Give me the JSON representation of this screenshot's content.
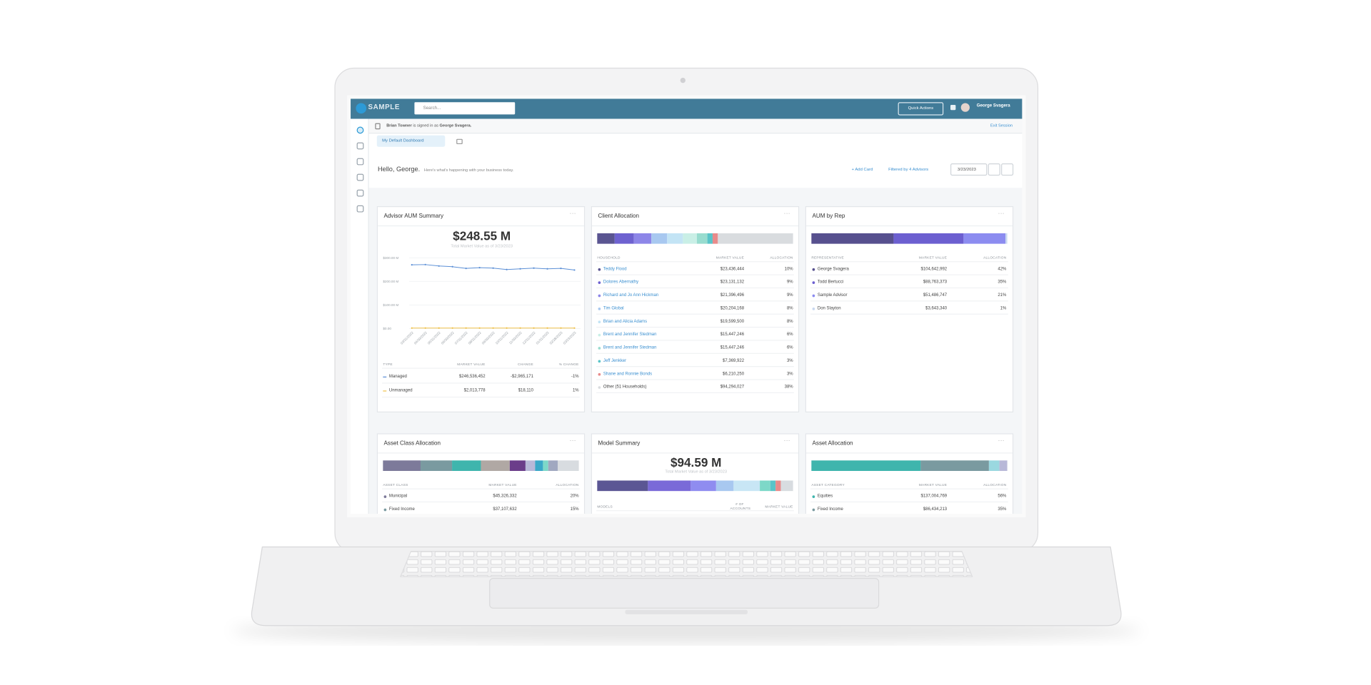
{
  "header": {
    "logo": "SAMPLE",
    "search_placeholder": "Search...",
    "quick_actions": "Quick Actions",
    "user_name": "George Svagera"
  },
  "banner": {
    "signed_in_user": "Brian Towner",
    "signed_in_text": "is signed in as",
    "signed_in_as": "George Svagera.",
    "exit": "Exit Session"
  },
  "tab": "My Default Dashboard",
  "greeting": {
    "title": "Hello, George.",
    "subtitle": "Here's what's happening with your business today.",
    "add_card": "+ Add Card",
    "filter": "Filtered by 4 Advisors",
    "date": "3/23/2023"
  },
  "chart_data": {
    "type": "line",
    "title": "Advisor AUM Summary",
    "x": [
      "03/31/2022",
      "04/30/2022",
      "05/31/2022",
      "06/30/2022",
      "07/31/2022",
      "08/31/2022",
      "09/30/2022",
      "10/31/2022",
      "11/30/2022",
      "12/31/2022",
      "01/31/2023",
      "02/28/2023",
      "03/23/2023"
    ],
    "series": [
      {
        "name": "Managed",
        "color": "#5b8fd6",
        "values": [
          270,
          271,
          265,
          262,
          255,
          258,
          256,
          250,
          253,
          256,
          253,
          255,
          248
        ]
      },
      {
        "name": "Unmanaged",
        "color": "#f0c24b",
        "values": [
          2,
          2,
          2,
          2,
          2,
          2,
          2,
          2,
          2,
          2,
          2,
          2,
          2
        ]
      }
    ],
    "ylim": [
      0,
      300
    ],
    "yticks": [
      {
        "value": 0,
        "label": "$0.00"
      },
      {
        "value": 100,
        "label": "$100.00 M"
      },
      {
        "value": 200,
        "label": "$200.00 M"
      },
      {
        "value": 300,
        "label": "$300.00 M"
      }
    ],
    "grid": true
  },
  "aum_summary": {
    "headline": "$248.55 M",
    "caption": "Total Market Value as of 3/23/2023",
    "headers": [
      "TYPE",
      "MARKET VALUE",
      "CHANGE",
      "% CHANGE"
    ],
    "rows": [
      [
        "$246,536,452",
        "-$2,965,171",
        "-1%"
      ],
      [
        "$2,013,778",
        "$18,110",
        "1%"
      ]
    ]
  },
  "client_allocation": {
    "title": "Client Allocation",
    "headers": [
      "HOUSEHOLD",
      "MARKET VALUE",
      "ALLOCATION"
    ],
    "links": true,
    "colors": [
      "#5a5591",
      "#6e62d0",
      "#8d86e8",
      "#a8c8f0",
      "#c3e4f5",
      "#c9efe6",
      "#98dccf",
      "#59c4c8",
      "#e88b8b",
      "#d9dcdf"
    ],
    "rows": [
      [
        "Teddy Flood",
        "$23,436,444",
        "10%"
      ],
      [
        "Dolores Abernathy",
        "$23,131,132",
        "9%"
      ],
      [
        "Richard and Jo Ann Hickman",
        "$21,396,496",
        "9%"
      ],
      [
        "Tim Global",
        "$20,204,168",
        "8%"
      ],
      [
        "Brian and Alicia Adams",
        "$19,599,500",
        "8%"
      ],
      [
        "Brent and Jennifer Stedman",
        "$15,447,246",
        "6%"
      ],
      [
        "Brent and Jennifer Stedman",
        "$15,447,246",
        "6%"
      ],
      [
        "Jeff Jenkker",
        "$7,369,922",
        "3%"
      ],
      [
        "Shane and Ronnie Bonds",
        "$6,210,250",
        "3%"
      ],
      [
        "Other (51 Households)",
        "$94,294,027",
        "38%"
      ]
    ]
  },
  "aum_by_rep": {
    "title": "AUM by Rep",
    "headers": [
      "REPRESENTATIVE",
      "MARKET VALUE",
      "ALLOCATION"
    ],
    "colors": [
      "#57508e",
      "#6c5fd0",
      "#8c8cf0",
      "#c8d8f0"
    ],
    "rows": [
      [
        "George Svagera",
        "$104,642,992",
        "42%"
      ],
      [
        "Todd Bertucci",
        "$88,763,373",
        "35%"
      ],
      [
        "Sample Advisor",
        "$51,486,747",
        "21%"
      ],
      [
        "Don Slayton",
        "$3,643,340",
        "1%"
      ]
    ]
  },
  "asset_class_allocation": {
    "title": "Asset Class Allocation",
    "headers": [
      "ASSET CLASS",
      "MARKET VALUE",
      "ALLOCATION"
    ],
    "colors": [
      "#7d7a9a",
      "#7a9aa0"
    ],
    "rows": [
      [
        "Municipal",
        "$45,326,332",
        "20%"
      ],
      [
        "Fixed Income",
        "$37,107,632",
        "15%"
      ]
    ]
  },
  "model_summary": {
    "title": "Model Summary",
    "headline": "$94.59 M",
    "caption": "Total Market Value as of 3/23/2023",
    "headers": [
      "MODELS",
      "# OF ACCOUNTS",
      "MARKET VALUE"
    ]
  },
  "asset_allocation": {
    "title": "Asset Allocation",
    "headers": [
      "ASSET CATEGORY",
      "MARKET VALUE",
      "ALLOCATION"
    ],
    "colors": [
      "#3fb5ad",
      "#7a9aa0"
    ],
    "rows": [
      [
        "Equities",
        "$137,004,769",
        "56%"
      ],
      [
        "Fixed Income",
        "$86,434,213",
        "35%"
      ]
    ]
  }
}
